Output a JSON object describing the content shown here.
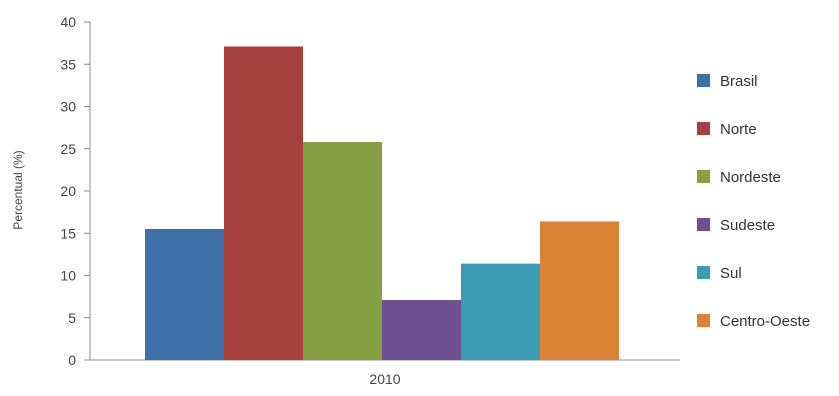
{
  "chart_data": {
    "type": "bar",
    "categories": [
      "2010"
    ],
    "series": [
      {
        "name": "Brasil",
        "values": [
          15.5
        ],
        "color": "#3f6fa8"
      },
      {
        "name": "Norte",
        "values": [
          37.1
        ],
        "color": "#a5403c"
      },
      {
        "name": "Nordeste",
        "values": [
          25.8
        ],
        "color": "#86a044"
      },
      {
        "name": "Sudeste",
        "values": [
          7.1
        ],
        "color": "#6e4f8f"
      },
      {
        "name": "Sul",
        "values": [
          11.4
        ],
        "color": "#3b9bb2"
      },
      {
        "name": "Centro-Oeste",
        "values": [
          16.4
        ],
        "color": "#dc8236"
      }
    ],
    "ylabel": "Percentual (%)",
    "ylim": [
      0,
      40
    ],
    "yticks": [
      "0",
      "5",
      "10",
      "15",
      "20",
      "25",
      "30",
      "35",
      "40"
    ],
    "grid": false,
    "legend_position": "right"
  }
}
